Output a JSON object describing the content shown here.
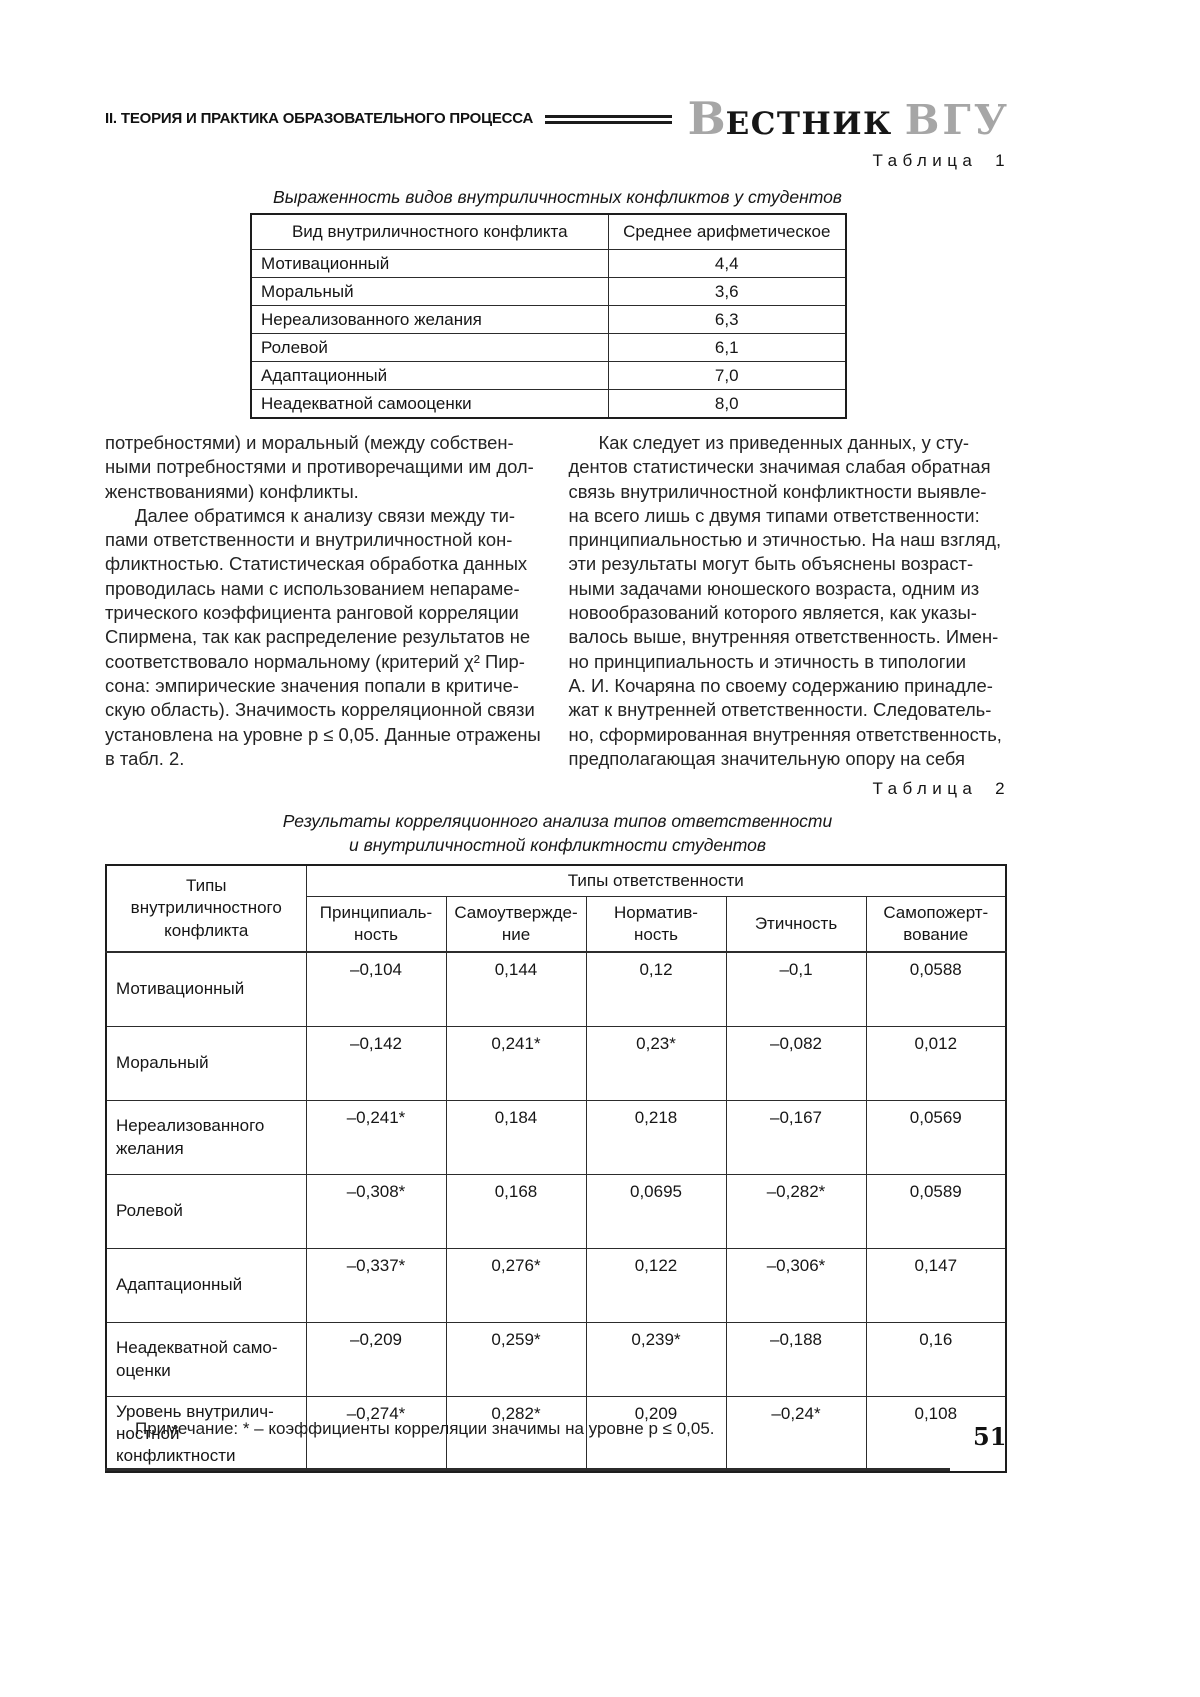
{
  "header": {
    "section_title": "II. ТЕОРИЯ И ПРАКТИКА ОБРАЗОВАТЕЛЬНОГО ПРОЦЕССА",
    "journal_initial": "В",
    "journal_rest": "ЕСТНИК",
    "journal_abbr": "ВГУ"
  },
  "table1": {
    "caption": "Таблица 1",
    "title": "Выраженность видов внутриличностных конфликтов у студентов",
    "col_headers": [
      "Вид внутриличностного конфликта",
      "Среднее арифметическое"
    ],
    "rows": [
      {
        "label": "Мотивационный",
        "value": "4,4"
      },
      {
        "label": "Моральный",
        "value": "3,6"
      },
      {
        "label": "Нереализованного желания",
        "value": "6,3"
      },
      {
        "label": "Ролевой",
        "value": "6,1"
      },
      {
        "label": "Адаптационный",
        "value": "7,0"
      },
      {
        "label": "Неадекватной самооценки",
        "value": "8,0"
      }
    ]
  },
  "body": {
    "left_p1": "потребностями) и моральный (между собствен-\nными потребностями и противоречащими им дол-\nженствованиями) конфликты.",
    "left_p2": "Далее обратимся к анализу связи между ти-\nпами ответственности и внутриличностной кон-\nфликтностью. Статистическая обработка данных\nпроводилась нами с использованием непараме-\nтрического коэффициента ранговой корреляции\nСпирмена, так как распределение результатов не\nсоответствовало нормальному (критерий χ² Пир-\nсона: эмпирические значения попали в критиче-\nскую область). Значимость корреляционной связи\nустановлена на уровне p ≤ 0,05. Данные отражены\nв табл. 2.",
    "right_p1": "Как следует из приведенных данных, у сту-\nдентов статистически значимая слабая обратная\nсвязь внутриличностной конфликтности выявле-\nна всего лишь с двумя типами ответственности:\nпринципиальностью и этичностью. На наш взгляд,\nэти результаты могут быть объяснены возраст-\nными задачами юношеского возраста, одним из\nновообразований которого является, как указы-\nвалось выше, внутренняя ответственность. Имен-\nно принципиальность и этичность в типологии\nА. И. Кочаряна по своему содержанию принадле-\nжат к внутренней ответственности. Следователь-\nно, сформированная внутренняя ответственность,\nпредполагающая значительную опору на себя"
  },
  "table2": {
    "caption": "Таблица 2",
    "title": "Результаты корреляционного анализа типов ответственности\nи внутриличностной конфликтности студентов",
    "corner_header": "Типы\nвнутриличностного\nконфликта",
    "group_header": "Типы ответственности",
    "col_headers": [
      "Принципиаль-\nность",
      "Самоутвержде-\nние",
      "Норматив-\nность",
      "Этичность",
      "Самопожерт-\nвование"
    ],
    "rows": [
      {
        "label": "Мотивационный",
        "values": [
          "–0,104",
          "0,144",
          "0,12",
          "–0,1",
          "0,0588"
        ]
      },
      {
        "label": "Моральный",
        "values": [
          "–0,142",
          "0,241*",
          "0,23*",
          "–0,082",
          "0,012"
        ]
      },
      {
        "label": "Нереализованного\nжелания",
        "values": [
          "–0,241*",
          "0,184",
          "0,218",
          "–0,167",
          "0,0569"
        ]
      },
      {
        "label": "Ролевой",
        "values": [
          "–0,308*",
          "0,168",
          "0,0695",
          "–0,282*",
          "0,0589"
        ]
      },
      {
        "label": "Адаптационный",
        "values": [
          "–0,337*",
          "0,276*",
          "0,122",
          "–0,306*",
          "0,147"
        ]
      },
      {
        "label": "Неадекватной само-\nоценки",
        "values": [
          "–0,209",
          "0,259*",
          "0,239*",
          "–0,188",
          "0,16"
        ]
      },
      {
        "label": "Уровень внутрилич-\nностной конфликтности",
        "values": [
          "–0,274*",
          "0,282*",
          "0,209",
          "–0,24*",
          "0,108"
        ]
      }
    ]
  },
  "footnote": "Примечание: * – коэффициенты корреляции значимы на уровне p ≤ 0,05.",
  "page_number": "51",
  "colors": {
    "logo_gray": "#a6a6a6",
    "ink": "#1f1f1f"
  }
}
